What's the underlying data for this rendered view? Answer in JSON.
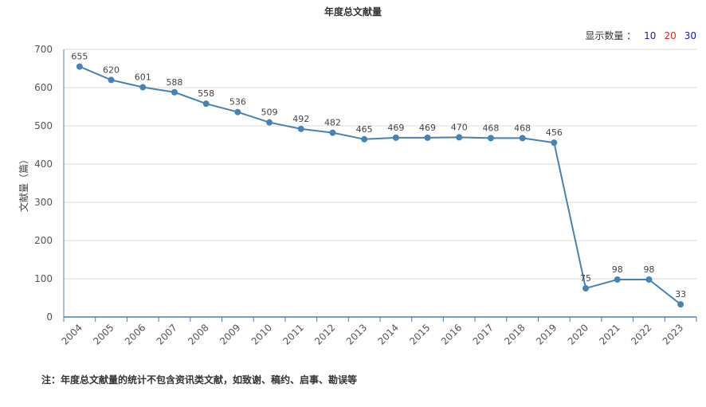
{
  "title": "年度总文献量",
  "display_count": {
    "label": "显示数量 ：",
    "options": [
      {
        "value": "10",
        "color": "#1a1aa6"
      },
      {
        "value": "20",
        "color": "#d9261c"
      },
      {
        "value": "30",
        "color": "#1a1aa6"
      }
    ]
  },
  "footnote": "注：年度总文献量的统计不包含资讯类文献，如致谢、稿约、启事、勘误等",
  "chart_data": {
    "type": "line",
    "title": "年度总文献量",
    "xlabel": "",
    "ylabel": "文献量（篇）",
    "ylim": [
      0,
      700
    ],
    "yticks": [
      0,
      100,
      200,
      300,
      400,
      500,
      600,
      700
    ],
    "grid": true,
    "line_color": "#4682b4",
    "categories": [
      "2004",
      "2005",
      "2006",
      "2007",
      "2008",
      "2009",
      "2010",
      "2011",
      "2012",
      "2013",
      "2014",
      "2015",
      "2016",
      "2017",
      "2018",
      "2019",
      "2020",
      "2021",
      "2022",
      "2023"
    ],
    "values": [
      655,
      620,
      601,
      588,
      558,
      536,
      509,
      492,
      482,
      465,
      469,
      469,
      470,
      468,
      468,
      456,
      75,
      98,
      98,
      33
    ]
  }
}
